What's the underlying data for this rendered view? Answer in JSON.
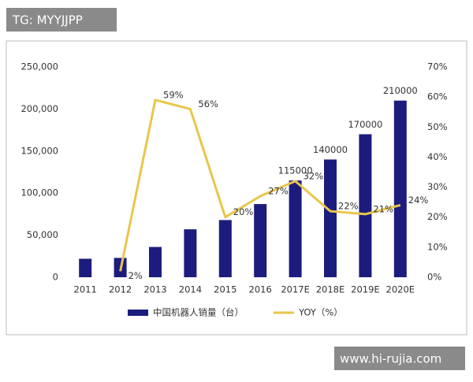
{
  "watermarks": {
    "top_left": "TG: MYYJJPP",
    "bottom_right": "www.hi-rujia.com"
  },
  "chart_data": {
    "type": "bar",
    "categories": [
      "2011",
      "2012",
      "2013",
      "2014",
      "2015",
      "2016",
      "2017E",
      "2018E",
      "2019E",
      "2020E"
    ],
    "series": [
      {
        "name": "中国机器人销量（台）",
        "color": "#1c1c7e",
        "type": "bar",
        "values": [
          22000,
          23000,
          36000,
          57000,
          68000,
          87000,
          115000,
          140000,
          170000,
          210000
        ],
        "value_labels": [
          null,
          null,
          null,
          null,
          null,
          null,
          "115000",
          "140000",
          "170000",
          "210000"
        ]
      },
      {
        "name": "YOY（%）",
        "color": "#e9c64a",
        "type": "line",
        "axis": "y2",
        "values": [
          null,
          2,
          59,
          56,
          20,
          27,
          32,
          22,
          21,
          24
        ],
        "value_labels": [
          null,
          "2%",
          "59%",
          "56%",
          "20%",
          "27%",
          "32%",
          "22%",
          "21%",
          "24%"
        ]
      }
    ],
    "ylim": [
      0,
      250000
    ],
    "yticks": [
      0,
      {
        "value": 50000,
        "label": "50,000"
      },
      {
        "value": 100000,
        "label": "100,000"
      },
      {
        "value": 150000,
        "label": "150,000"
      },
      {
        "value": 200000,
        "label": "200,000"
      },
      {
        "value": 250000,
        "label": "250,000"
      }
    ],
    "y2lim": [
      0,
      70
    ],
    "y2ticks": [
      {
        "value": 0,
        "label": "0%"
      },
      {
        "value": 10,
        "label": "10%"
      },
      {
        "value": 20,
        "label": "20%"
      },
      {
        "value": 30,
        "label": "30%"
      },
      {
        "value": 40,
        "label": "40%"
      },
      {
        "value": 50,
        "label": "50%"
      },
      {
        "value": 60,
        "label": "60%"
      },
      {
        "value": 70,
        "label": "70%"
      }
    ],
    "grid": false
  }
}
